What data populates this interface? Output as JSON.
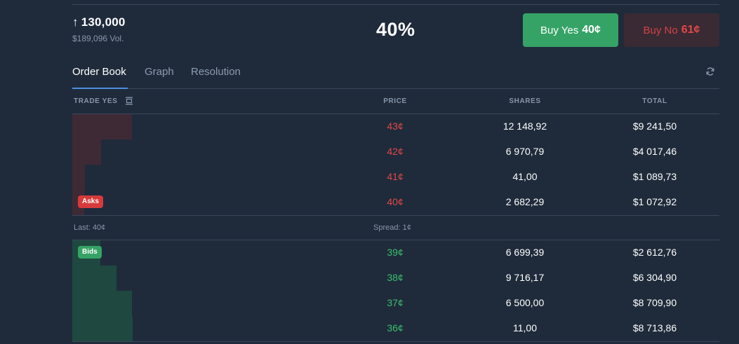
{
  "market": {
    "outcome_arrow": "↑",
    "outcome_label": "130,000",
    "volume": "$189,096 Vol.",
    "chance": "40%"
  },
  "actions": {
    "buy_yes_label": "Buy Yes",
    "buy_yes_price": "40¢",
    "buy_no_label": "Buy No",
    "buy_no_price": "61¢"
  },
  "tabs": [
    {
      "label": "Order Book",
      "active": true
    },
    {
      "label": "Graph",
      "active": false
    },
    {
      "label": "Resolution",
      "active": false
    }
  ],
  "columns": {
    "trade": "TRADE YES",
    "price": "PRICE",
    "shares": "SHARES",
    "total": "TOTAL"
  },
  "asks_badge": "Asks",
  "bids_badge": "Bids",
  "asks": [
    {
      "price": "43¢",
      "shares": "12 148,92",
      "total": "$9 241,50"
    },
    {
      "price": "42¢",
      "shares": "6 970,79",
      "total": "$4 017,46"
    },
    {
      "price": "41¢",
      "shares": "41,00",
      "total": "$1 089,73"
    },
    {
      "price": "40¢",
      "shares": "2 682,29",
      "total": "$1 072,92"
    }
  ],
  "bids": [
    {
      "price": "39¢",
      "shares": "6 699,39",
      "total": "$2 612,76"
    },
    {
      "price": "38¢",
      "shares": "9 716,17",
      "total": "$6 304,90"
    },
    {
      "price": "37¢",
      "shares": "6 500,00",
      "total": "$8 709,90"
    },
    {
      "price": "36¢",
      "shares": "11,00",
      "total": "$8 713,86"
    }
  ],
  "spread_row": {
    "last": "Last: 40¢",
    "spread": "Spread: 1¢"
  },
  "colors": {
    "background": "#1f2b3b",
    "yes_green": "#36a366",
    "no_red": "#e04848",
    "ask_depth": "#3e2a35",
    "bid_depth": "#1f4840",
    "active_tab_underline": "#4d8fe0"
  },
  "icons": {
    "refresh": "refresh-icon",
    "collapse": "collapse-rows-icon"
  }
}
